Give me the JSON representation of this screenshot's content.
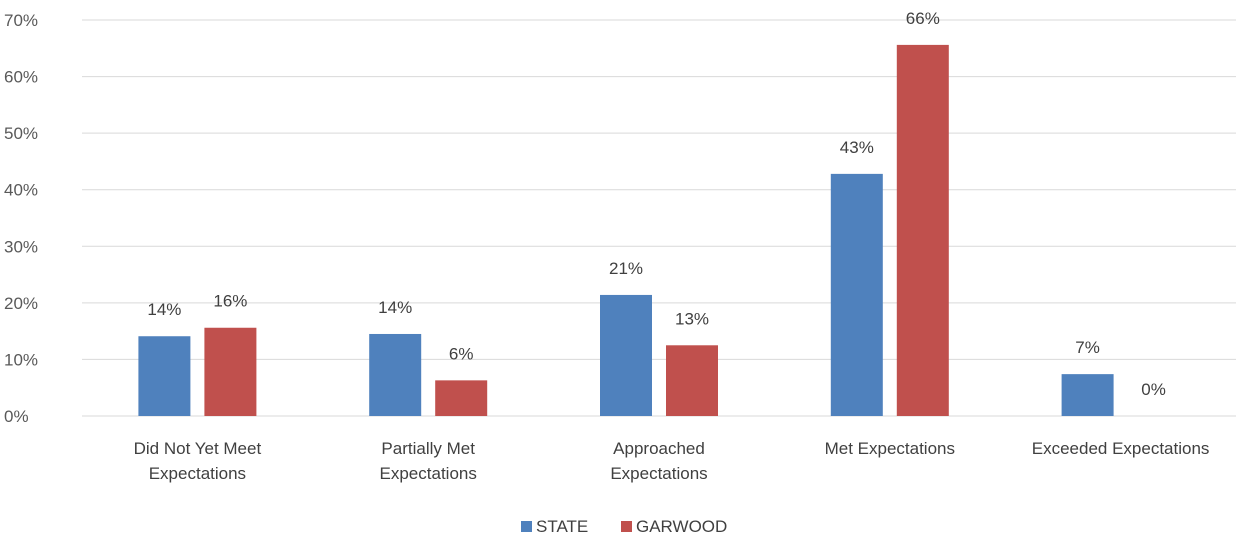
{
  "chart_data": {
    "type": "bar",
    "title": "",
    "xlabel": "",
    "ylabel": "",
    "ylim": [
      0,
      70
    ],
    "yticks": [
      0,
      10,
      20,
      30,
      40,
      50,
      60,
      70
    ],
    "ytick_labels": [
      "0%",
      "10%",
      "20%",
      "30%",
      "40%",
      "50%",
      "60%",
      "70%"
    ],
    "grid": true,
    "legend_position": "bottom",
    "categories": [
      [
        "Did Not Yet Meet",
        "Expectations"
      ],
      [
        "Partially Met",
        "Expectations"
      ],
      [
        "Approached",
        "Expectations"
      ],
      [
        "Met Expectations"
      ],
      [
        "Exceeded Expectations"
      ]
    ],
    "series": [
      {
        "name": "STATE",
        "color": "#4f81bd",
        "values": [
          14.1,
          14.5,
          21.4,
          42.8,
          7.4
        ],
        "labels": [
          "14%",
          "14%",
          "21%",
          "43%",
          "7%"
        ]
      },
      {
        "name": "GARWOOD",
        "color": "#c0504d",
        "values": [
          15.6,
          6.3,
          12.5,
          65.6,
          0
        ],
        "labels": [
          "16%",
          "6%",
          "13%",
          "66%",
          "0%"
        ]
      }
    ]
  }
}
